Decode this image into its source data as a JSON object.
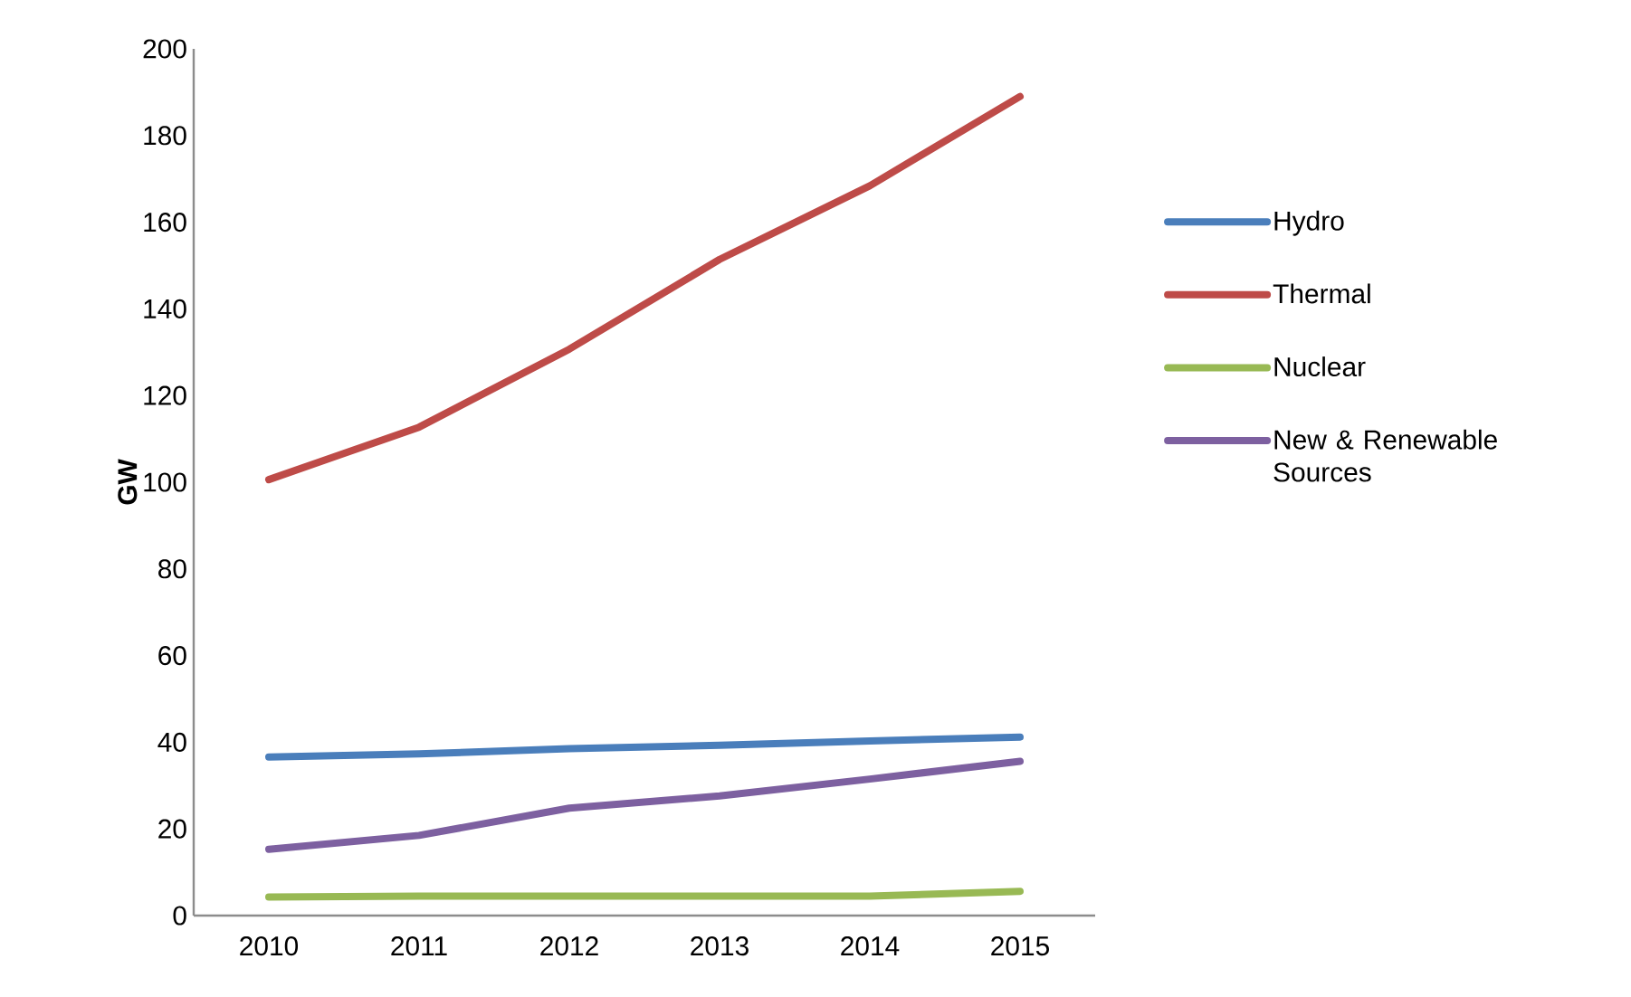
{
  "chart_data": {
    "type": "line",
    "ylabel": "GW",
    "categories": [
      "2010",
      "2011",
      "2012",
      "2013",
      "2014",
      "2015"
    ],
    "series": [
      {
        "name": "Hydro",
        "color": "#4a7ebb",
        "values": [
          36.6,
          37.3,
          38.5,
          39.3,
          40.3,
          41.2
        ]
      },
      {
        "name": "Thermal",
        "color": "#be4b48",
        "values": [
          100.6,
          112.7,
          130.7,
          151.4,
          168.4,
          189
        ]
      },
      {
        "name": "Nuclear",
        "color": "#98b954",
        "values": [
          4.3,
          4.5,
          4.5,
          4.5,
          4.5,
          5.6
        ]
      },
      {
        "name": "New & Renewable Sources",
        "color": "#7d60a0",
        "values": [
          15.3,
          18.5,
          24.8,
          27.6,
          31.5,
          35.6
        ]
      }
    ],
    "ylim": [
      0,
      200
    ],
    "yticks": [
      0,
      20,
      40,
      60,
      80,
      100,
      120,
      140,
      160,
      180,
      200
    ],
    "legend": "right",
    "marker": "none",
    "line_style": "solid",
    "grid": false
  }
}
